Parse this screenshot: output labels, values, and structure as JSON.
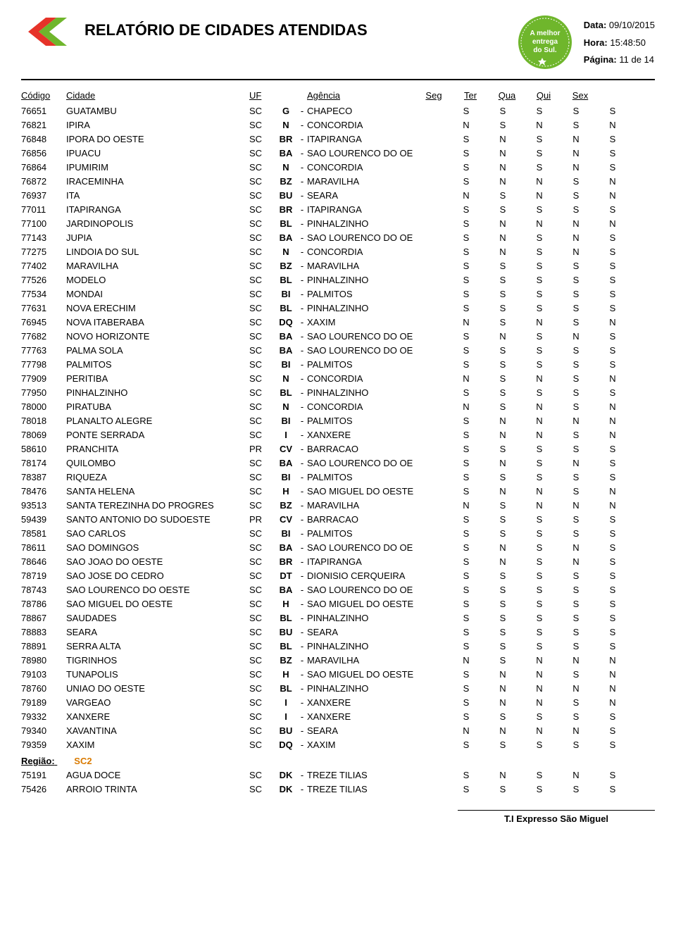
{
  "header": {
    "title": "RELATÓRIO DE CIDADES ATENDIDAS",
    "data_label": "Data:",
    "data_value": "09/10/2015",
    "hora_label": "Hora:",
    "hora_value": "15:48:50",
    "pagina_label": "Página:",
    "pagina_value": "11  de  14",
    "badge_line1": "A melhor",
    "badge_line2": "entrega",
    "badge_line3": "do Sul.",
    "logo_colors": {
      "red": "#e63329",
      "green": "#6fb62c"
    },
    "badge_color": "#6fb62c"
  },
  "columns": {
    "codigo": "Código",
    "cidade": "Cidade",
    "uf": "UF",
    "agencia": "Agência",
    "seg": "Seg",
    "ter": "Ter",
    "qua": "Qua",
    "qui": "Qui",
    "sex": "Sex"
  },
  "rows": [
    {
      "codigo": "76651",
      "cidade": "GUATAMBU",
      "uf": "SC",
      "ag": "G",
      "agname": "CHAPECO",
      "d": [
        "S",
        "S",
        "S",
        "S",
        "S"
      ]
    },
    {
      "codigo": "76821",
      "cidade": "IPIRA",
      "uf": "SC",
      "ag": "N",
      "agname": "CONCORDIA",
      "d": [
        "N",
        "S",
        "N",
        "S",
        "N"
      ]
    },
    {
      "codigo": "76848",
      "cidade": "IPORA DO OESTE",
      "uf": "SC",
      "ag": "BR",
      "agname": "ITAPIRANGA",
      "d": [
        "S",
        "N",
        "S",
        "N",
        "S"
      ]
    },
    {
      "codigo": "76856",
      "cidade": "IPUACU",
      "uf": "SC",
      "ag": "BA",
      "agname": "SAO LOURENCO DO OE",
      "d": [
        "S",
        "N",
        "S",
        "N",
        "S"
      ]
    },
    {
      "codigo": "76864",
      "cidade": "IPUMIRIM",
      "uf": "SC",
      "ag": "N",
      "agname": "CONCORDIA",
      "d": [
        "S",
        "N",
        "S",
        "N",
        "S"
      ]
    },
    {
      "codigo": "76872",
      "cidade": "IRACEMINHA",
      "uf": "SC",
      "ag": "BZ",
      "agname": "MARAVILHA",
      "d": [
        "S",
        "N",
        "N",
        "S",
        "N"
      ]
    },
    {
      "codigo": "76937",
      "cidade": "ITA",
      "uf": "SC",
      "ag": "BU",
      "agname": "SEARA",
      "d": [
        "N",
        "S",
        "N",
        "S",
        "N"
      ]
    },
    {
      "codigo": "77011",
      "cidade": "ITAPIRANGA",
      "uf": "SC",
      "ag": "BR",
      "agname": "ITAPIRANGA",
      "d": [
        "S",
        "S",
        "S",
        "S",
        "S"
      ]
    },
    {
      "codigo": "77100",
      "cidade": "JARDINOPOLIS",
      "uf": "SC",
      "ag": "BL",
      "agname": "PINHALZINHO",
      "d": [
        "S",
        "N",
        "N",
        "N",
        "N"
      ]
    },
    {
      "codigo": "77143",
      "cidade": "JUPIA",
      "uf": "SC",
      "ag": "BA",
      "agname": "SAO LOURENCO DO OE",
      "d": [
        "S",
        "N",
        "S",
        "N",
        "S"
      ]
    },
    {
      "codigo": "77275",
      "cidade": "LINDOIA DO SUL",
      "uf": "SC",
      "ag": "N",
      "agname": "CONCORDIA",
      "d": [
        "S",
        "N",
        "S",
        "N",
        "S"
      ]
    },
    {
      "codigo": "77402",
      "cidade": "MARAVILHA",
      "uf": "SC",
      "ag": "BZ",
      "agname": "MARAVILHA",
      "d": [
        "S",
        "S",
        "S",
        "S",
        "S"
      ]
    },
    {
      "codigo": "77526",
      "cidade": "MODELO",
      "uf": "SC",
      "ag": "BL",
      "agname": "PINHALZINHO",
      "d": [
        "S",
        "S",
        "S",
        "S",
        "S"
      ]
    },
    {
      "codigo": "77534",
      "cidade": "MONDAI",
      "uf": "SC",
      "ag": "BI",
      "agname": "PALMITOS",
      "d": [
        "S",
        "S",
        "S",
        "S",
        "S"
      ]
    },
    {
      "codigo": "77631",
      "cidade": "NOVA ERECHIM",
      "uf": "SC",
      "ag": "BL",
      "agname": "PINHALZINHO",
      "d": [
        "S",
        "S",
        "S",
        "S",
        "S"
      ]
    },
    {
      "codigo": "76945",
      "cidade": "NOVA ITABERABA",
      "uf": "SC",
      "ag": "DQ",
      "agname": "XAXIM",
      "d": [
        "N",
        "S",
        "N",
        "S",
        "N"
      ]
    },
    {
      "codigo": "77682",
      "cidade": "NOVO HORIZONTE",
      "uf": "SC",
      "ag": "BA",
      "agname": "SAO LOURENCO DO OE",
      "d": [
        "S",
        "N",
        "S",
        "N",
        "S"
      ]
    },
    {
      "codigo": "77763",
      "cidade": "PALMA SOLA",
      "uf": "SC",
      "ag": "BA",
      "agname": "SAO LOURENCO DO OE",
      "d": [
        "S",
        "S",
        "S",
        "S",
        "S"
      ]
    },
    {
      "codigo": "77798",
      "cidade": "PALMITOS",
      "uf": "SC",
      "ag": "BI",
      "agname": "PALMITOS",
      "d": [
        "S",
        "S",
        "S",
        "S",
        "S"
      ]
    },
    {
      "codigo": "77909",
      "cidade": "PERITIBA",
      "uf": "SC",
      "ag": "N",
      "agname": "CONCORDIA",
      "d": [
        "N",
        "S",
        "N",
        "S",
        "N"
      ]
    },
    {
      "codigo": "77950",
      "cidade": "PINHALZINHO",
      "uf": "SC",
      "ag": "BL",
      "agname": "PINHALZINHO",
      "d": [
        "S",
        "S",
        "S",
        "S",
        "S"
      ]
    },
    {
      "codigo": "78000",
      "cidade": "PIRATUBA",
      "uf": "SC",
      "ag": "N",
      "agname": "CONCORDIA",
      "d": [
        "N",
        "S",
        "N",
        "S",
        "N"
      ]
    },
    {
      "codigo": "78018",
      "cidade": "PLANALTO ALEGRE",
      "uf": "SC",
      "ag": "BI",
      "agname": "PALMITOS",
      "d": [
        "S",
        "N",
        "N",
        "N",
        "N"
      ]
    },
    {
      "codigo": "78069",
      "cidade": "PONTE SERRADA",
      "uf": "SC",
      "ag": "I",
      "agname": "XANXERE",
      "d": [
        "S",
        "N",
        "N",
        "S",
        "N"
      ]
    },
    {
      "codigo": "58610",
      "cidade": "PRANCHITA",
      "uf": "PR",
      "ag": "CV",
      "agname": "BARRACAO",
      "d": [
        "S",
        "S",
        "S",
        "S",
        "S"
      ]
    },
    {
      "codigo": "78174",
      "cidade": "QUILOMBO",
      "uf": "SC",
      "ag": "BA",
      "agname": "SAO LOURENCO DO OE",
      "d": [
        "S",
        "N",
        "S",
        "N",
        "S"
      ]
    },
    {
      "codigo": "78387",
      "cidade": "RIQUEZA",
      "uf": "SC",
      "ag": "BI",
      "agname": "PALMITOS",
      "d": [
        "S",
        "S",
        "S",
        "S",
        "S"
      ]
    },
    {
      "codigo": "78476",
      "cidade": "SANTA HELENA",
      "uf": "SC",
      "ag": "H",
      "agname": "SAO MIGUEL DO OESTE",
      "d": [
        "S",
        "N",
        "N",
        "S",
        "N"
      ]
    },
    {
      "codigo": "93513",
      "cidade": "SANTA TEREZINHA DO PROGRES",
      "uf": "SC",
      "ag": "BZ",
      "agname": "MARAVILHA",
      "d": [
        "N",
        "S",
        "N",
        "N",
        "N"
      ]
    },
    {
      "codigo": "59439",
      "cidade": "SANTO ANTONIO DO SUDOESTE",
      "uf": "PR",
      "ag": "CV",
      "agname": "BARRACAO",
      "d": [
        "S",
        "S",
        "S",
        "S",
        "S"
      ]
    },
    {
      "codigo": "78581",
      "cidade": "SAO CARLOS",
      "uf": "SC",
      "ag": "BI",
      "agname": "PALMITOS",
      "d": [
        "S",
        "S",
        "S",
        "S",
        "S"
      ]
    },
    {
      "codigo": "78611",
      "cidade": "SAO DOMINGOS",
      "uf": "SC",
      "ag": "BA",
      "agname": "SAO LOURENCO DO OE",
      "d": [
        "S",
        "N",
        "S",
        "N",
        "S"
      ]
    },
    {
      "codigo": "78646",
      "cidade": "SAO JOAO DO OESTE",
      "uf": "SC",
      "ag": "BR",
      "agname": "ITAPIRANGA",
      "d": [
        "S",
        "N",
        "S",
        "N",
        "S"
      ]
    },
    {
      "codigo": "78719",
      "cidade": "SAO JOSE DO CEDRO",
      "uf": "SC",
      "ag": "DT",
      "agname": "DIONISIO CERQUEIRA",
      "d": [
        "S",
        "S",
        "S",
        "S",
        "S"
      ]
    },
    {
      "codigo": "78743",
      "cidade": "SAO LOURENCO DO OESTE",
      "uf": "SC",
      "ag": "BA",
      "agname": "SAO LOURENCO DO OE",
      "d": [
        "S",
        "S",
        "S",
        "S",
        "S"
      ]
    },
    {
      "codigo": "78786",
      "cidade": "SAO MIGUEL DO OESTE",
      "uf": "SC",
      "ag": "H",
      "agname": "SAO MIGUEL DO OESTE",
      "d": [
        "S",
        "S",
        "S",
        "S",
        "S"
      ]
    },
    {
      "codigo": "78867",
      "cidade": "SAUDADES",
      "uf": "SC",
      "ag": "BL",
      "agname": "PINHALZINHO",
      "d": [
        "S",
        "S",
        "S",
        "S",
        "S"
      ]
    },
    {
      "codigo": "78883",
      "cidade": "SEARA",
      "uf": "SC",
      "ag": "BU",
      "agname": "SEARA",
      "d": [
        "S",
        "S",
        "S",
        "S",
        "S"
      ]
    },
    {
      "codigo": "78891",
      "cidade": "SERRA ALTA",
      "uf": "SC",
      "ag": "BL",
      "agname": "PINHALZINHO",
      "d": [
        "S",
        "S",
        "S",
        "S",
        "S"
      ]
    },
    {
      "codigo": "78980",
      "cidade": "TIGRINHOS",
      "uf": "SC",
      "ag": "BZ",
      "agname": "MARAVILHA",
      "d": [
        "N",
        "S",
        "N",
        "N",
        "N"
      ]
    },
    {
      "codigo": "79103",
      "cidade": "TUNAPOLIS",
      "uf": "SC",
      "ag": "H",
      "agname": "SAO MIGUEL DO OESTE",
      "d": [
        "S",
        "N",
        "N",
        "S",
        "N"
      ]
    },
    {
      "codigo": "78760",
      "cidade": "UNIAO DO OESTE",
      "uf": "SC",
      "ag": "BL",
      "agname": "PINHALZINHO",
      "d": [
        "S",
        "N",
        "N",
        "N",
        "N"
      ]
    },
    {
      "codigo": "79189",
      "cidade": "VARGEAO",
      "uf": "SC",
      "ag": "I",
      "agname": "XANXERE",
      "d": [
        "S",
        "N",
        "N",
        "S",
        "N"
      ]
    },
    {
      "codigo": "79332",
      "cidade": "XANXERE",
      "uf": "SC",
      "ag": "I",
      "agname": "XANXERE",
      "d": [
        "S",
        "S",
        "S",
        "S",
        "S"
      ]
    },
    {
      "codigo": "79340",
      "cidade": "XAVANTINA",
      "uf": "SC",
      "ag": "BU",
      "agname": "SEARA",
      "d": [
        "N",
        "N",
        "N",
        "N",
        "S"
      ]
    },
    {
      "codigo": "79359",
      "cidade": "XAXIM",
      "uf": "SC",
      "ag": "DQ",
      "agname": "XAXIM",
      "d": [
        "S",
        "S",
        "S",
        "S",
        "S"
      ]
    }
  ],
  "region": {
    "label": "Região:",
    "name": "SC2"
  },
  "rows2": [
    {
      "codigo": "75191",
      "cidade": "AGUA DOCE",
      "uf": "SC",
      "ag": "DK",
      "agname": "TREZE TILIAS",
      "d": [
        "S",
        "N",
        "S",
        "N",
        "S"
      ]
    },
    {
      "codigo": "75426",
      "cidade": "ARROIO TRINTA",
      "uf": "SC",
      "ag": "DK",
      "agname": "TREZE TILIAS",
      "d": [
        "S",
        "S",
        "S",
        "S",
        "S"
      ]
    }
  ],
  "footer": "T.I Expresso São Miguel"
}
